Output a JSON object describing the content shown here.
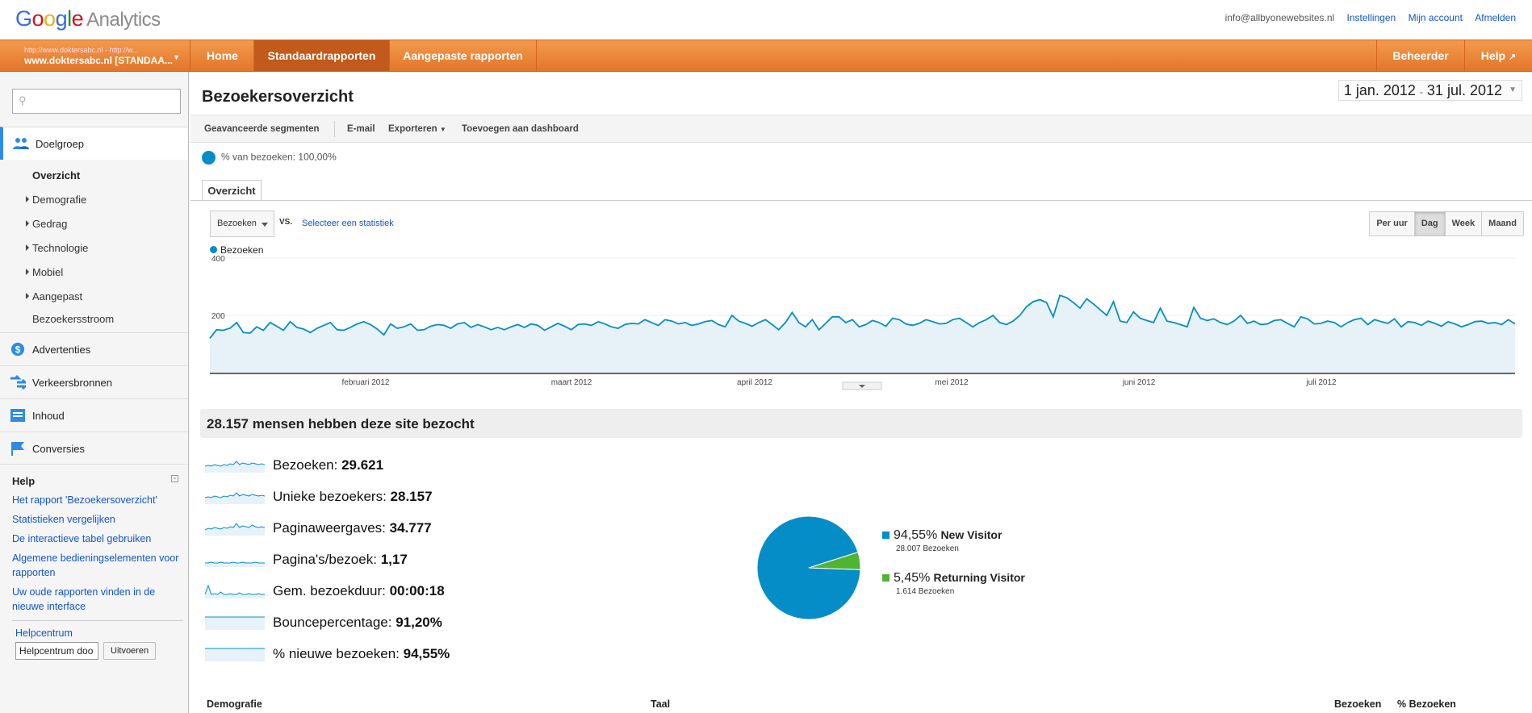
{
  "header": {
    "logo_google": [
      "G",
      "o",
      "o",
      "g",
      "l",
      "e"
    ],
    "logo_product": "Analytics",
    "email": "info@allbyonewebsites.nl",
    "links": [
      "Instellingen",
      "Mijn account",
      "Afmelden"
    ]
  },
  "nav": {
    "account_line1": "http://www.doktersabc.nl - http://w...",
    "account_line2": "www.doktersabc.nl [STANDAA...",
    "items": [
      "Home",
      "Standaardrapporten",
      "Aangepaste rapporten"
    ],
    "active": "Standaardrapporten",
    "right_items": [
      "Beheerder",
      "Help"
    ]
  },
  "sidebar": {
    "search_placeholder": "",
    "sections": [
      {
        "label": "Doelgroep",
        "icon": "people-icon"
      },
      {
        "label": "Advertenties",
        "icon": "dollar-icon"
      },
      {
        "label": "Verkeersbronnen",
        "icon": "arrows-icon"
      },
      {
        "label": "Inhoud",
        "icon": "content-icon"
      },
      {
        "label": "Conversies",
        "icon": "flag-icon"
      }
    ],
    "subitems": [
      "Overzicht",
      "Demografie",
      "Gedrag",
      "Technologie",
      "Mobiel",
      "Aangepast",
      "Bezoekersstroom"
    ],
    "help_title": "Help",
    "help_links": [
      "Het rapport 'Bezoekersoverzicht'",
      "Statistieken vergelijken",
      "De interactieve tabel gebruiken",
      "Algemene bedieningselementen voor rapporten",
      "Uw oude rapporten vinden in de nieuwe interface"
    ],
    "helpcenter_label": "Helpcentrum",
    "helpcenter_input": "Helpcentrum doo",
    "helpcenter_button": "Uitvoeren"
  },
  "main": {
    "title": "Bezoekersoverzicht",
    "date_range_start": "1 jan. 2012",
    "date_range_sep": "-",
    "date_range_end": "31 jul. 2012",
    "actions": [
      "Geavanceerde segmenten",
      "E-mail",
      "Exporteren",
      "Toevoegen aan dashboard"
    ],
    "segment_text": "% van bezoeken: 100,00%",
    "tab": "Overzicht",
    "metric_select": "Bezoeken",
    "vs": "VS.",
    "select_stat": "Selecteer een statistiek",
    "granularity": [
      "Per uur",
      "Dag",
      "Week",
      "Maand"
    ],
    "granularity_active": "Dag",
    "legend": "Bezoeken",
    "summary_header": "28.157 mensen hebben deze site bezocht",
    "metrics": [
      {
        "label": "Bezoeken:",
        "value": "29.621"
      },
      {
        "label": "Unieke bezoekers:",
        "value": "28.157"
      },
      {
        "label": "Paginaweergaves:",
        "value": "34.777"
      },
      {
        "label": "Pagina's/bezoek:",
        "value": "1,17"
      },
      {
        "label": "Gem. bezoekduur:",
        "value": "00:00:18"
      },
      {
        "label": "Bouncepercentage:",
        "value": "91,20%"
      },
      {
        "label": "% nieuwe bezoeken:",
        "value": "94,55%"
      }
    ],
    "pie": [
      {
        "pct": "94,55%",
        "name": "New Visitor",
        "sub": "28.007 Bezoeken",
        "color": "#058dc7",
        "value": 94.55
      },
      {
        "pct": "5,45%",
        "name": "Returning Visitor",
        "sub": "1.614 Bezoeken",
        "color": "#50b432",
        "value": 5.45
      }
    ],
    "table_headers": [
      "Demografie",
      "Taal",
      "Bezoeken",
      "% Bezoeken"
    ]
  },
  "colors": {
    "line": "#058dc7",
    "fill": "#e6f2f8",
    "accent": "#e8822f"
  },
  "chart_data": {
    "type": "area",
    "series": [
      {
        "name": "Bezoeken",
        "values": [
          120,
          150,
          148,
          155,
          175,
          140,
          138,
          160,
          148,
          175,
          162,
          148,
          178,
          158,
          152,
          140,
          155,
          165,
          175,
          150,
          148,
          158,
          170,
          178,
          168,
          152,
          132,
          170,
          155,
          160,
          170,
          148,
          150,
          162,
          168,
          165,
          155,
          170,
          175,
          158,
          168,
          160,
          150,
          158,
          150,
          160,
          168,
          158,
          170,
          165,
          148,
          160,
          172,
          162,
          150,
          168,
          170,
          165,
          178,
          170,
          160,
          155,
          168,
          172,
          170,
          185,
          175,
          165,
          185,
          180,
          170,
          175,
          165,
          170,
          178,
          182,
          168,
          160,
          200,
          180,
          172,
          162,
          175,
          185,
          168,
          150,
          175,
          210,
          175,
          160,
          185,
          150,
          172,
          195,
          195,
          175,
          185,
          160,
          168,
          182,
          175,
          162,
          190,
          185,
          170,
          165,
          172,
          185,
          178,
          170,
          172,
          185,
          190,
          175,
          160,
          175,
          185,
          200,
          175,
          168,
          180,
          200,
          230,
          248,
          255,
          245,
          195,
          270,
          262,
          245,
          225,
          258,
          240,
          220,
          200,
          248,
          180,
          175,
          212,
          190,
          182,
          175,
          225,
          180,
          175,
          168,
          160,
          228,
          190,
          182,
          188,
          175,
          168,
          180,
          200,
          172,
          180,
          168,
          170,
          182,
          185,
          172,
          160,
          195,
          188,
          170,
          172,
          180,
          175,
          160,
          175,
          185,
          190,
          168,
          185,
          178,
          172,
          188,
          160,
          178,
          175,
          165,
          180,
          172,
          162,
          178,
          170,
          160,
          168,
          178,
          180,
          172,
          175,
          168,
          185,
          170
        ]
      }
    ],
    "y_ticks": [
      "400",
      "200"
    ],
    "ylim": [
      0,
      400
    ],
    "x_labels": [
      "februari 2012",
      "maart 2012",
      "april 2012",
      "mei 2012",
      "juni 2012",
      "juli 2012"
    ]
  }
}
